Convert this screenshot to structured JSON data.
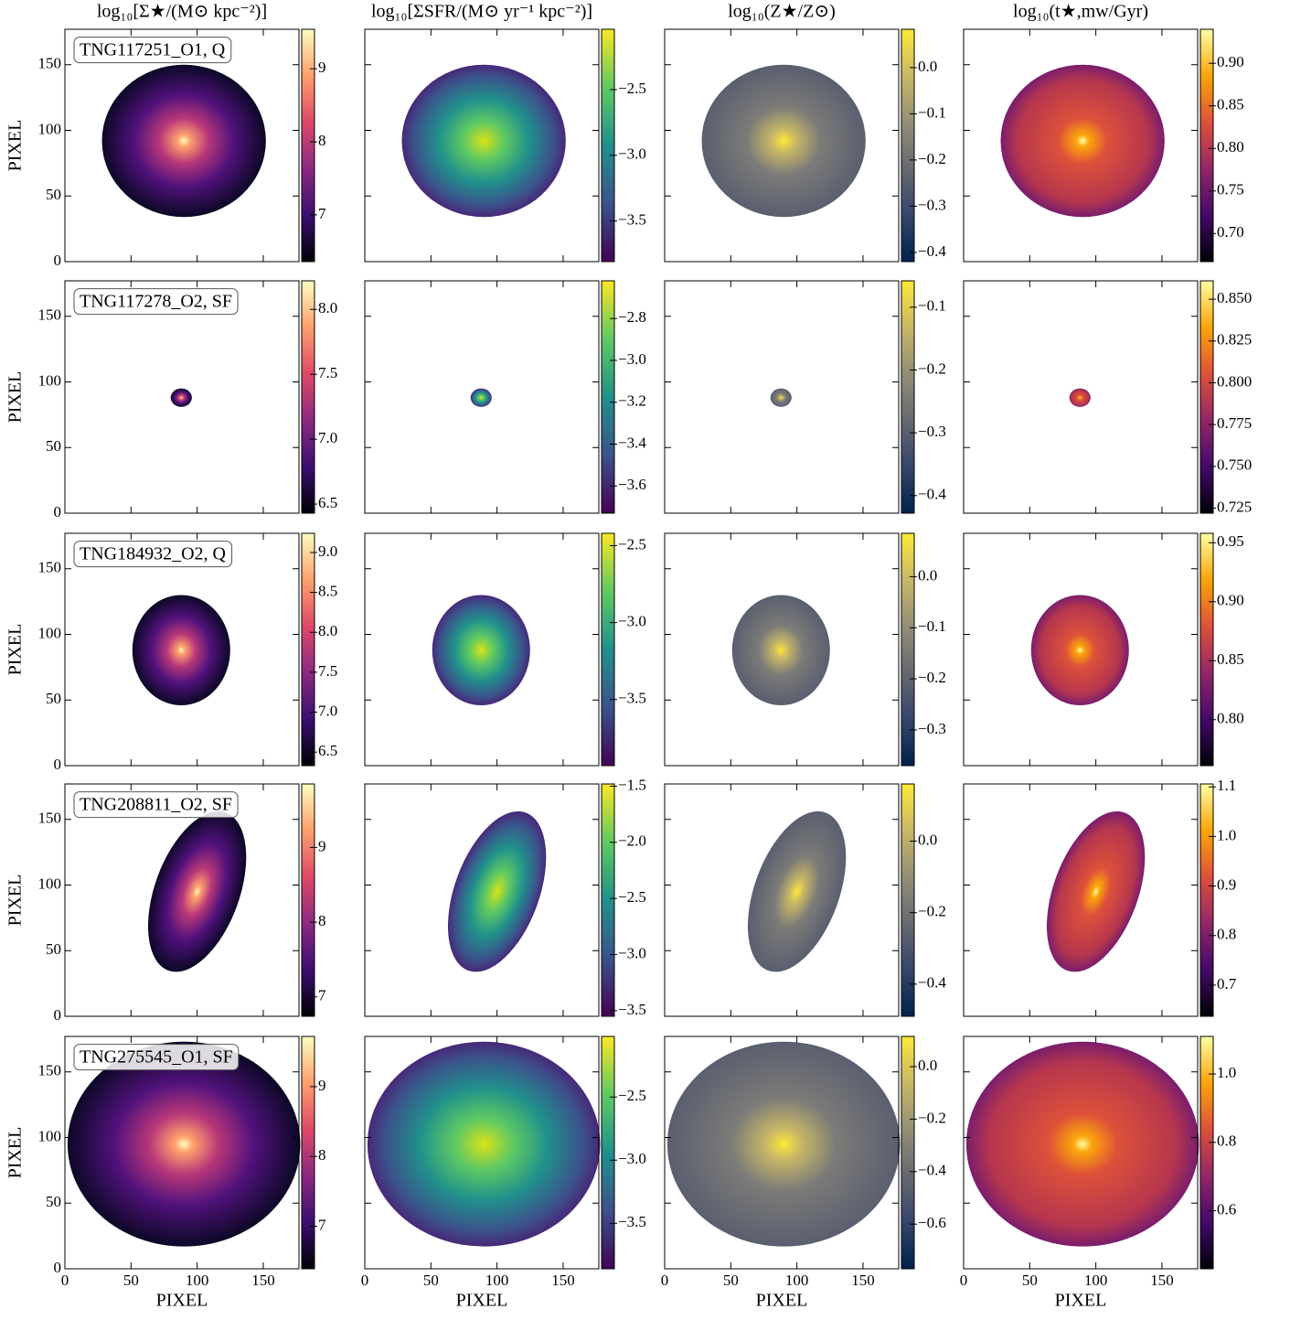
{
  "chart_data": {
    "type": "image_grid",
    "column_titles": [
      "log₁₀[Σ★/(M⊙ kpc⁻²)]",
      "log₁₀[ΣSFR/(M⊙ yr⁻¹ kpc⁻²)]",
      "log₁₀(Z★/Z⊙)",
      "log₁₀(t★,mw/Gyr)"
    ],
    "xlabel": "PIXEL",
    "ylabel": "PIXEL",
    "xlim": [
      0,
      177
    ],
    "ylim": [
      0,
      177
    ],
    "xticks": [
      0,
      50,
      100,
      150
    ],
    "yticks": [
      0,
      50,
      100,
      150
    ],
    "rows": [
      {
        "label": "TNG117251_O1, Q",
        "panels": [
          {
            "clim": [
              6.36,
              9.54
            ],
            "cticks": [
              7,
              8,
              9
            ]
          },
          {
            "clim": [
              -3.81,
              -2.04
            ],
            "cticks": [
              {
                "value": -3.5,
                "label": "−3.5"
              },
              {
                "value": -3.0,
                "label": "−3.0"
              },
              {
                "value": -2.5,
                "label": "−2.5"
              }
            ]
          },
          {
            "clim": [
              -0.42,
              0.083
            ],
            "cticks": [
              {
                "value": -0.4,
                "label": "−0.4"
              },
              {
                "value": -0.3,
                "label": "−0.3"
              },
              {
                "value": -0.2,
                "label": "−0.2"
              },
              {
                "value": -0.1,
                "label": "−0.1"
              },
              {
                "value": 0,
                "label": "0.0"
              }
            ]
          },
          {
            "clim": [
              0.667,
              0.94
            ],
            "cticks": [
              {
                "value": 0.7,
                "label": "0.70"
              },
              0.75,
              {
                "value": 0.8,
                "label": "0.80"
              },
              0.85,
              {
                "value": 0.9,
                "label": "0.90"
              }
            ]
          }
        ]
      },
      {
        "label": "TNG117278_O2, SF",
        "panels": [
          {
            "clim": [
              6.43,
              8.22
            ],
            "cticks": [
              6.5,
              {
                "value": 7,
                "label": "7.0"
              },
              7.5,
              {
                "value": 8,
                "label": "8.0"
              }
            ]
          },
          {
            "clim": [
              -3.73,
              -2.62
            ],
            "cticks": [
              {
                "value": -3.6,
                "label": "−3.6"
              },
              {
                "value": -3.4,
                "label": "−3.4"
              },
              {
                "value": -3.2,
                "label": "−3.2"
              },
              {
                "value": -3.0,
                "label": "−3.0"
              },
              {
                "value": -2.8,
                "label": "−2.8"
              }
            ]
          },
          {
            "clim": [
              -0.428,
              -0.058
            ],
            "cticks": [
              {
                "value": -0.4,
                "label": "−0.4"
              },
              {
                "value": -0.3,
                "label": "−0.3"
              },
              {
                "value": -0.2,
                "label": "−0.2"
              },
              {
                "value": -0.1,
                "label": "−0.1"
              }
            ]
          },
          {
            "clim": [
              0.722,
              0.861
            ],
            "cticks": [
              0.725,
              {
                "value": 0.75,
                "label": "0.750"
              },
              0.775,
              {
                "value": 0.8,
                "label": "0.800"
              },
              0.825,
              {
                "value": 0.85,
                "label": "0.850"
              }
            ]
          }
        ]
      },
      {
        "label": "TNG184932_O2, Q",
        "panels": [
          {
            "clim": [
              6.33,
              9.24
            ],
            "cticks": [
              6.5,
              {
                "value": 7,
                "label": "7.0"
              },
              7.5,
              {
                "value": 8,
                "label": "8.0"
              },
              8.5,
              {
                "value": 9,
                "label": "9.0"
              }
            ]
          },
          {
            "clim": [
              -3.93,
              -2.42
            ],
            "cticks": [
              {
                "value": -3.5,
                "label": "−3.5"
              },
              {
                "value": -3.0,
                "label": "−3.0"
              },
              {
                "value": -2.5,
                "label": "−2.5"
              }
            ]
          },
          {
            "clim": [
              -0.37,
              0.085
            ],
            "cticks": [
              {
                "value": -0.3,
                "label": "−0.3"
              },
              {
                "value": -0.2,
                "label": "−0.2"
              },
              {
                "value": -0.1,
                "label": "−0.1"
              },
              {
                "value": 0,
                "label": "0.0"
              }
            ]
          },
          {
            "clim": [
              0.761,
              0.958
            ],
            "cticks": [
              {
                "value": 0.8,
                "label": "0.80"
              },
              0.85,
              {
                "value": 0.9,
                "label": "0.90"
              },
              0.95
            ]
          }
        ]
      },
      {
        "label": "TNG208811_O2, SF",
        "panels": [
          {
            "clim": [
              6.74,
              9.85
            ],
            "cticks": [
              7,
              8,
              9
            ]
          },
          {
            "clim": [
              -3.55,
              -1.48
            ],
            "cticks": [
              {
                "value": -3.5,
                "label": "−3.5"
              },
              {
                "value": -3.0,
                "label": "−3.0"
              },
              {
                "value": -2.5,
                "label": "−2.5"
              },
              {
                "value": -2.0,
                "label": "−2.0"
              },
              {
                "value": -1.5,
                "label": "−1.5"
              }
            ]
          },
          {
            "clim": [
              -0.49,
              0.16
            ],
            "cticks": [
              {
                "value": -0.4,
                "label": "−0.4"
              },
              {
                "value": -0.2,
                "label": "−0.2"
              },
              {
                "value": 0,
                "label": "0.0"
              }
            ]
          },
          {
            "clim": [
              0.637,
              1.106
            ],
            "cticks": [
              0.7,
              0.8,
              0.9,
              {
                "value": 1,
                "label": "1.0"
              },
              1.1
            ]
          }
        ]
      },
      {
        "label": "TNG275545_O1, SF",
        "panels": [
          {
            "clim": [
              6.39,
              9.72
            ],
            "cticks": [
              7,
              8,
              9
            ]
          },
          {
            "clim": [
              -3.86,
              -2.02
            ],
            "cticks": [
              {
                "value": -3.5,
                "label": "−3.5"
              },
              {
                "value": -3.0,
                "label": "−3.0"
              },
              {
                "value": -2.5,
                "label": "−2.5"
              }
            ]
          },
          {
            "clim": [
              -0.77,
              0.115
            ],
            "cticks": [
              {
                "value": -0.6,
                "label": "−0.6"
              },
              {
                "value": -0.4,
                "label": "−0.4"
              },
              {
                "value": -0.2,
                "label": "−0.2"
              },
              {
                "value": 0,
                "label": "0.0"
              }
            ]
          },
          {
            "clim": [
              0.43,
              1.11
            ],
            "cticks": [
              0.6,
              0.8,
              {
                "value": 1,
                "label": "1.0"
              }
            ]
          }
        ]
      }
    ]
  }
}
